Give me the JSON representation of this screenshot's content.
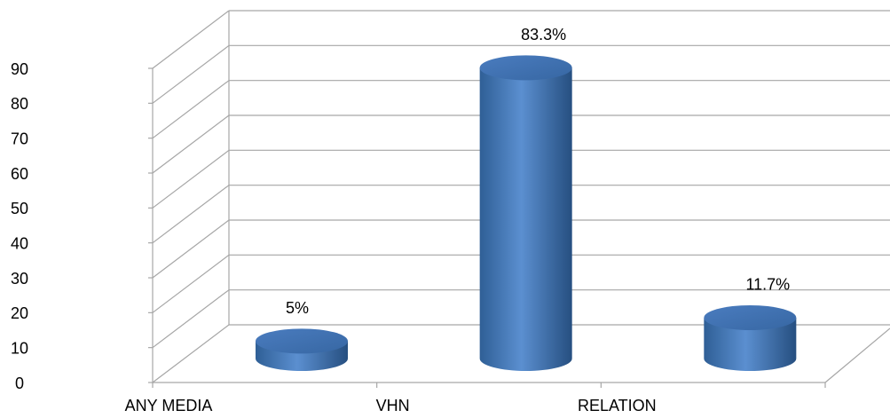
{
  "chart_data": {
    "type": "bar3d",
    "categories": [
      "ANY MEDIA",
      "VHN",
      "RELATION"
    ],
    "values": [
      5,
      83.3,
      11.7
    ],
    "value_labels": [
      "5%",
      "83.3%",
      "11.7%"
    ],
    "color": "#4f81bd",
    "ylim": [
      0,
      90
    ],
    "yticks": [
      0,
      10,
      20,
      30,
      40,
      50,
      60,
      70,
      80,
      90
    ],
    "grid": true
  }
}
